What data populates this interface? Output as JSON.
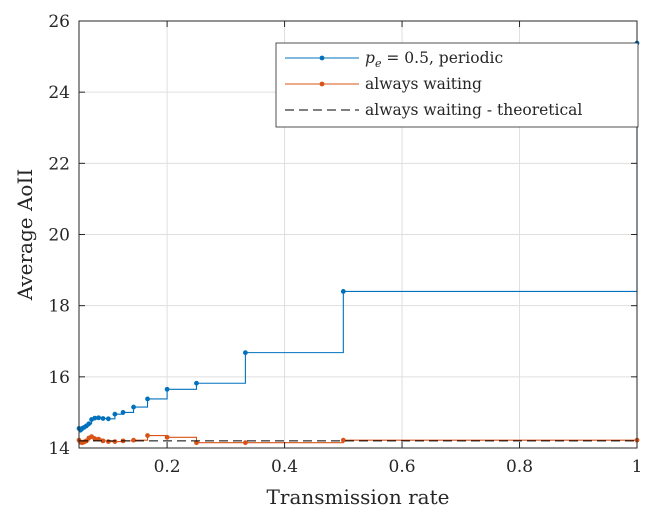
{
  "chart_data": {
    "type": "line",
    "step": true,
    "xlabel": "Transmission rate",
    "ylabel": "Average AoII",
    "xlim": [
      0.05,
      1.0
    ],
    "ylim": [
      14,
      26
    ],
    "xticks": [
      0.2,
      0.4,
      0.6,
      0.8,
      1.0
    ],
    "xtick_labels": [
      "0.2",
      "0.4",
      "0.6",
      "0.8",
      "1"
    ],
    "yticks": [
      14,
      16,
      18,
      20,
      22,
      24,
      26
    ],
    "ytick_labels": [
      "14",
      "16",
      "18",
      "20",
      "22",
      "24",
      "26"
    ],
    "grid": true,
    "legend_position": "top-right",
    "series": [
      {
        "name": "p_e = 0.5, periodic",
        "legend_label": {
          "var": "p",
          "sub": "e",
          "rest": " = 0.5, periodic"
        },
        "color": "#0072bd",
        "style": "line-dots",
        "x": [
          0.05,
          0.0526,
          0.0556,
          0.0588,
          0.0625,
          0.0667,
          0.0714,
          0.0769,
          0.0833,
          0.0909,
          0.1,
          0.1111,
          0.125,
          0.1429,
          0.1667,
          0.2,
          0.25,
          0.3333,
          0.5,
          1.0
        ],
        "y": [
          14.55,
          14.5,
          14.55,
          14.58,
          14.62,
          14.68,
          14.8,
          14.84,
          14.85,
          14.83,
          14.82,
          14.95,
          15.0,
          15.15,
          15.38,
          15.65,
          15.82,
          16.68,
          18.4,
          25.38
        ]
      },
      {
        "name": "always waiting",
        "color": "#d95319",
        "style": "line-dots",
        "x": [
          0.05,
          0.0526,
          0.0556,
          0.0588,
          0.0625,
          0.0667,
          0.0714,
          0.0769,
          0.0833,
          0.0909,
          0.1,
          0.1111,
          0.125,
          0.1429,
          0.1667,
          0.2,
          0.25,
          0.3333,
          0.5,
          1.0
        ],
        "y": [
          14.22,
          14.16,
          14.15,
          14.17,
          14.2,
          14.28,
          14.32,
          14.26,
          14.25,
          14.2,
          14.18,
          14.18,
          14.2,
          14.22,
          14.35,
          14.3,
          14.15,
          14.15,
          14.22,
          14.22
        ]
      },
      {
        "name": "always waiting - theoretical",
        "color": "#000000",
        "style": "dashed",
        "x": [
          0.05,
          1.0
        ],
        "y": [
          14.2,
          14.2
        ]
      }
    ]
  }
}
